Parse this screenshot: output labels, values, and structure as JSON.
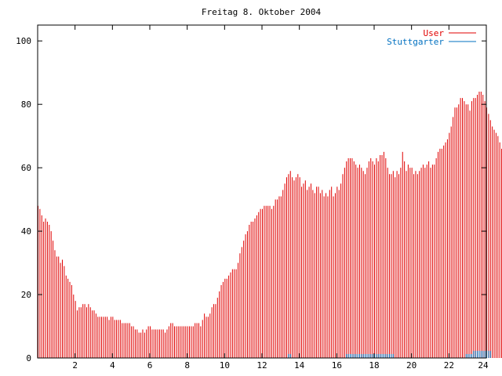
{
  "chart_data": {
    "type": "bar",
    "title": "Freitag 8. Oktober 2004",
    "xlabel": "",
    "ylabel": "",
    "xlim": [
      0,
      24
    ],
    "ylim": [
      0,
      105
    ],
    "x_ticks": [
      "2",
      "4",
      "6",
      "8",
      "10",
      "12",
      "14",
      "16",
      "18",
      "20",
      "22",
      "24"
    ],
    "y_ticks": [
      "0",
      "20",
      "40",
      "60",
      "80",
      "100"
    ],
    "grid": false,
    "legend_position": "top-right",
    "sample_interval_hours": 0.1,
    "series": [
      {
        "name": "User",
        "color": "#e00000",
        "values": [
          48,
          47,
          45,
          43,
          44,
          43,
          42,
          40,
          37,
          34,
          32,
          32,
          30,
          31,
          29,
          26,
          25,
          24,
          23,
          20,
          18,
          15,
          16,
          16,
          17,
          17,
          16,
          17,
          16,
          15,
          15,
          14,
          13,
          13,
          13,
          13,
          13,
          13,
          12,
          13,
          13,
          12,
          12,
          12,
          12,
          11,
          11,
          11,
          11,
          11,
          10,
          10,
          9,
          9,
          8,
          8,
          9,
          8,
          9,
          10,
          10,
          9,
          9,
          9,
          9,
          9,
          9,
          9,
          8,
          9,
          10,
          11,
          11,
          10,
          10,
          10,
          10,
          10,
          10,
          10,
          10,
          10,
          10,
          10,
          11,
          11,
          11,
          10,
          12,
          14,
          13,
          13,
          14,
          16,
          17,
          17,
          19,
          21,
          23,
          24,
          25,
          25,
          26,
          27,
          28,
          28,
          28,
          30,
          33,
          35,
          37,
          39,
          40,
          42,
          43,
          43,
          44,
          45,
          46,
          47,
          47,
          48,
          48,
          48,
          48,
          47,
          48,
          50,
          50,
          51,
          51,
          53,
          55,
          57,
          58,
          59,
          57,
          56,
          57,
          58,
          57,
          54,
          55,
          56,
          53,
          54,
          55,
          53,
          52,
          54,
          54,
          52,
          53,
          51,
          52,
          51,
          53,
          54,
          51,
          52,
          54,
          53,
          55,
          58,
          60,
          62,
          63,
          63,
          63,
          62,
          61,
          60,
          61,
          60,
          59,
          58,
          60,
          62,
          63,
          62,
          61,
          63,
          62,
          64,
          64,
          65,
          63,
          60,
          58,
          58,
          59,
          57,
          59,
          58,
          60,
          65,
          62,
          59,
          61,
          60,
          60,
          58,
          59,
          58,
          59,
          60,
          61,
          60,
          61,
          62,
          60,
          61,
          61,
          63,
          65,
          66,
          66,
          67,
          68,
          69,
          71,
          73,
          76,
          79,
          79,
          80,
          82,
          82,
          81,
          80,
          80,
          78,
          81,
          82,
          82,
          83,
          84,
          84,
          83,
          81,
          79,
          77,
          75,
          73,
          72,
          71,
          70,
          68,
          66,
          66,
          66,
          65,
          63,
          62,
          60,
          59,
          61,
          60
        ]
      },
      {
        "name": "Stuttgarter",
        "color": "#0070c0",
        "values": [
          0,
          0,
          0,
          0,
          0,
          0,
          0,
          0,
          0,
          0,
          0,
          0,
          0,
          0,
          0,
          0,
          0,
          0,
          0,
          0,
          0,
          0,
          0,
          0,
          0,
          0,
          0,
          0,
          0,
          0,
          0,
          0,
          0,
          0,
          0,
          0,
          0,
          0,
          0,
          0,
          0,
          0,
          0,
          0,
          0,
          0,
          0,
          0,
          0,
          0,
          0,
          0,
          0,
          0,
          0,
          0,
          0,
          0,
          0,
          0,
          0,
          0,
          0,
          0,
          0,
          0,
          0,
          0,
          0,
          0,
          0,
          0,
          0,
          0,
          0,
          0,
          0,
          0,
          0,
          0,
          0,
          0,
          0,
          0,
          0,
          0,
          0,
          0,
          0,
          0,
          0,
          0,
          0,
          0,
          0,
          0,
          0,
          0,
          0,
          0,
          0,
          0,
          0,
          0,
          0,
          0,
          0,
          0,
          0,
          0,
          0,
          0,
          0,
          0,
          0,
          0,
          0,
          0,
          0,
          0,
          0,
          0,
          0,
          0,
          0,
          0,
          0,
          0,
          0,
          0,
          0,
          0,
          0,
          0,
          1,
          1,
          0,
          0,
          0,
          0,
          0,
          0,
          0,
          0,
          0,
          0,
          0,
          0,
          0,
          0,
          0,
          0,
          0,
          0,
          0,
          0,
          0,
          0,
          0,
          0,
          0,
          0,
          0,
          0,
          0,
          1,
          1,
          1,
          1,
          1,
          1,
          1,
          1,
          1,
          1,
          1,
          1,
          1,
          1,
          1,
          1,
          1,
          1,
          1,
          1,
          1,
          1,
          1,
          1,
          1,
          1,
          0,
          0,
          0,
          0,
          0,
          0,
          0,
          0,
          0,
          0,
          0,
          0,
          0,
          0,
          0,
          0,
          0,
          0,
          0,
          0,
          0,
          0,
          0,
          0,
          0,
          0,
          0,
          0,
          0,
          0,
          0,
          0,
          0,
          0,
          0,
          0,
          0,
          0,
          1,
          1,
          1,
          1,
          2,
          2,
          2,
          2,
          2,
          2,
          2,
          2,
          2,
          2,
          0,
          0,
          0,
          0,
          0,
          0,
          0,
          0,
          0,
          0,
          0,
          0,
          0,
          0,
          0,
          0
        ]
      }
    ]
  }
}
